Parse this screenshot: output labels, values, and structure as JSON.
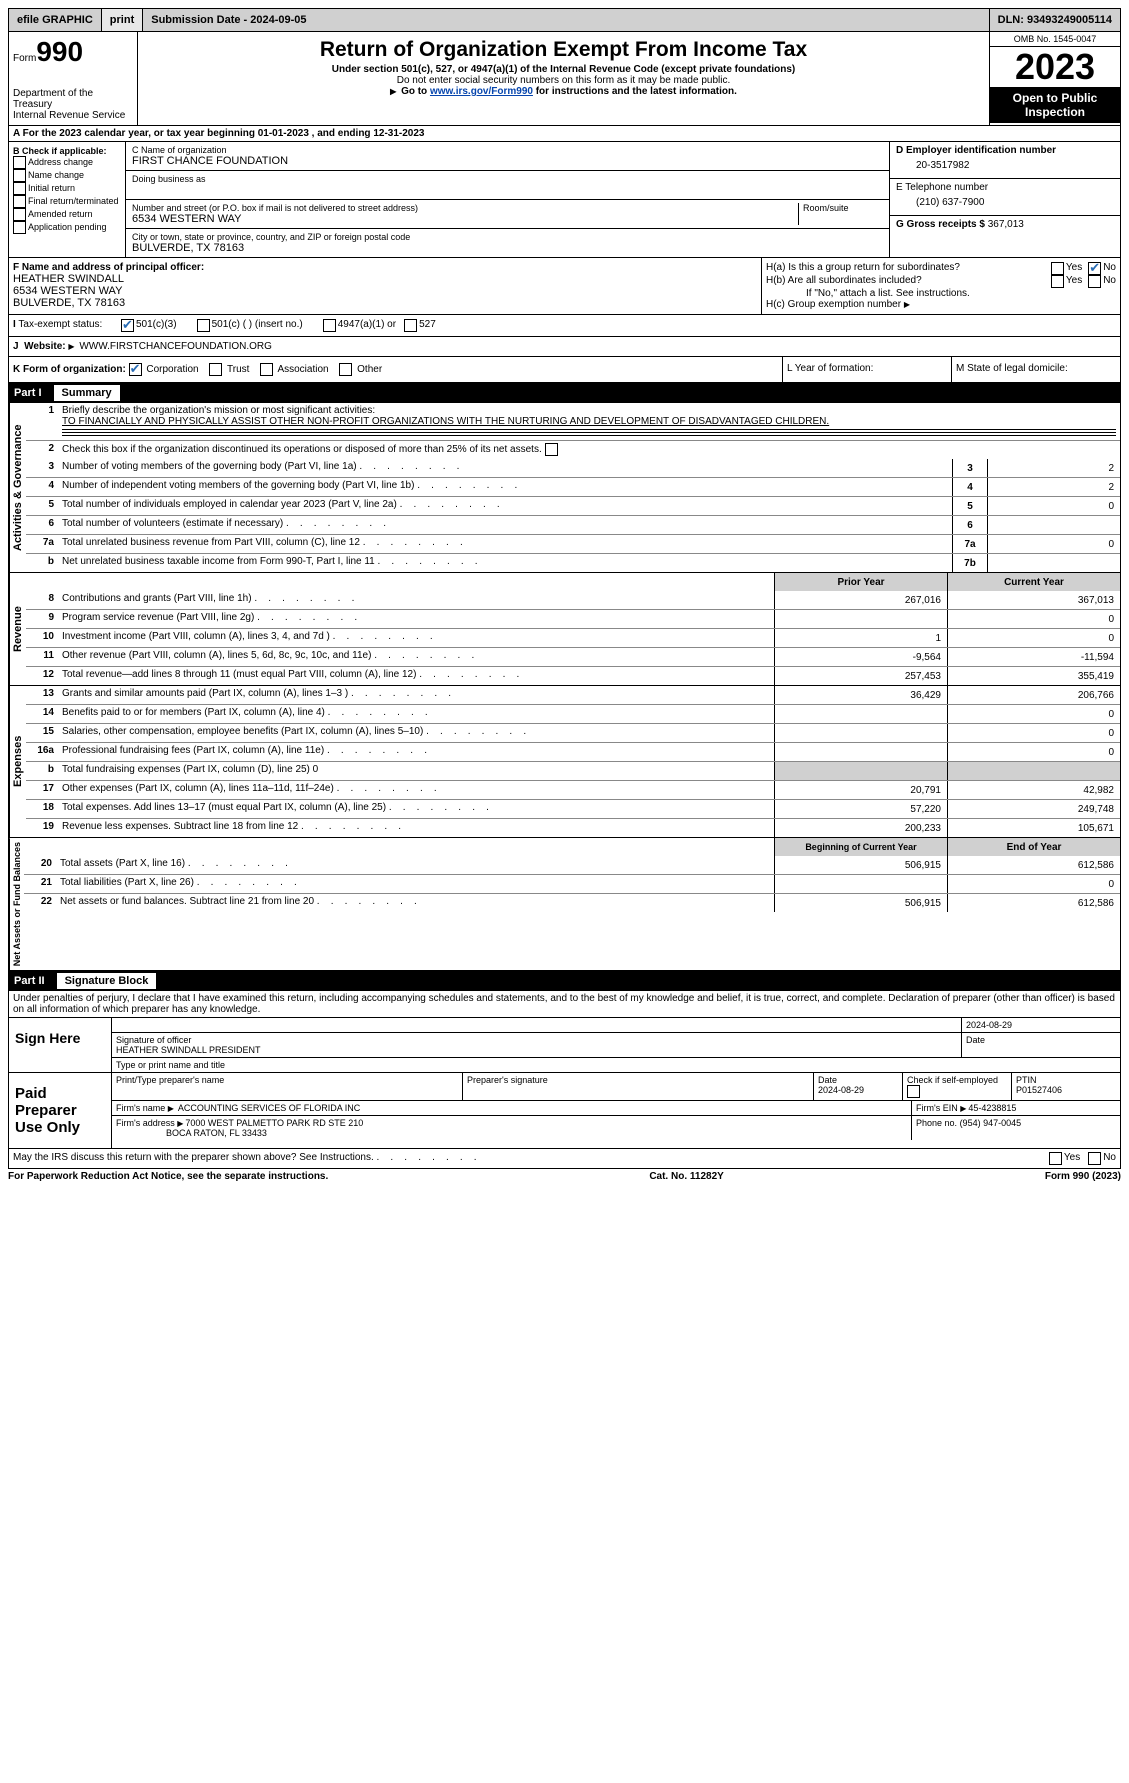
{
  "topbar": {
    "efile": "efile GRAPHIC",
    "print": "print",
    "submission": "Submission Date - 2024-09-05",
    "dln": "DLN: 93493249005114"
  },
  "header": {
    "form_label": "Form",
    "form_num": "990",
    "dept": "Department of the Treasury",
    "irs": "Internal Revenue Service",
    "title": "Return of Organization Exempt From Income Tax",
    "sub1": "Under section 501(c), 527, or 4947(a)(1) of the Internal Revenue Code (except private foundations)",
    "sub2": "Do not enter social security numbers on this form as it may be made public.",
    "sub3_pre": "Go to ",
    "sub3_link": "www.irs.gov/Form990",
    "sub3_post": " for instructions and the latest information.",
    "omb": "OMB No. 1545-0047",
    "year": "2023",
    "public": "Open to Public Inspection"
  },
  "row_a": "A For the 2023 calendar year, or tax year beginning 01-01-2023    , and ending 12-31-2023",
  "box_b": {
    "label": "B Check if applicable:",
    "items": [
      "Address change",
      "Name change",
      "Initial return",
      "Final return/terminated",
      "Amended return",
      "Application pending"
    ]
  },
  "box_c": {
    "label": "C Name of organization",
    "name": "FIRST CHANCE FOUNDATION",
    "dba_lbl": "Doing business as",
    "street_lbl": "Number and street (or P.O. box if mail is not delivered to street address)",
    "room_lbl": "Room/suite",
    "street": "6534 WESTERN WAY",
    "city_lbl": "City or town, state or province, country, and ZIP or foreign postal code",
    "city": "BULVERDE, TX  78163"
  },
  "box_d": {
    "label": "D Employer identification number",
    "val": "20-3517982"
  },
  "box_e": {
    "label": "E Telephone number",
    "val": "(210) 637-7900"
  },
  "box_g": {
    "label": "G Gross receipts $",
    "val": "367,013"
  },
  "box_f": {
    "label": "F Name and address of principal officer:",
    "l1": "HEATHER SWINDALL",
    "l2": "6534 WESTERN WAY",
    "l3": "BULVERDE, TX  78163"
  },
  "box_h": {
    "a": "H(a)  Is this a group return for subordinates?",
    "b": "H(b)  Are all subordinates included?",
    "b_note": "If \"No,\" attach a list. See instructions.",
    "c": "H(c)  Group exemption number",
    "yes": "Yes",
    "no": "No"
  },
  "box_i": {
    "label": "Tax-exempt status:",
    "o1": "501(c)(3)",
    "o2": "501(c) (  ) (insert no.)",
    "o3": "4947(a)(1) or",
    "o4": "527"
  },
  "box_j": {
    "label": "Website:",
    "val": "WWW.FIRSTCHANCEFOUNDATION.ORG"
  },
  "box_k": {
    "label": "K Form of organization:",
    "o1": "Corporation",
    "o2": "Trust",
    "o3": "Association",
    "o4": "Other"
  },
  "box_l": "L Year of formation:",
  "box_m": "M State of legal domicile:",
  "part1": {
    "title": "Part I",
    "sub": "Summary"
  },
  "sec_gov": {
    "label": "Activities & Governance",
    "l1_lbl": "Briefly describe the organization's mission or most significant activities:",
    "l1_val": "TO FINANCIALLY AND PHYSICALLY ASSIST OTHER NON-PROFIT ORGANIZATIONS WITH THE NURTURING AND DEVELOPMENT OF DISADVANTAGED CHILDREN.",
    "l2": "Check this box       if the organization discontinued its operations or disposed of more than 25% of its net assets.",
    "rows": [
      {
        "n": "3",
        "t": "Number of voting members of the governing body (Part VI, line 1a)",
        "box": "3",
        "v": "2"
      },
      {
        "n": "4",
        "t": "Number of independent voting members of the governing body (Part VI, line 1b)",
        "box": "4",
        "v": "2"
      },
      {
        "n": "5",
        "t": "Total number of individuals employed in calendar year 2023 (Part V, line 2a)",
        "box": "5",
        "v": "0"
      },
      {
        "n": "6",
        "t": "Total number of volunteers (estimate if necessary)",
        "box": "6",
        "v": ""
      },
      {
        "n": "7a",
        "t": "Total unrelated business revenue from Part VIII, column (C), line 12",
        "box": "7a",
        "v": "0"
      },
      {
        "n": "b",
        "t": "Net unrelated business taxable income from Form 990-T, Part I, line 11",
        "box": "7b",
        "v": ""
      }
    ]
  },
  "sec_rev": {
    "label": "Revenue",
    "head_prior": "Prior Year",
    "head_curr": "Current Year",
    "rows": [
      {
        "n": "8",
        "t": "Contributions and grants (Part VIII, line 1h)",
        "p": "267,016",
        "c": "367,013"
      },
      {
        "n": "9",
        "t": "Program service revenue (Part VIII, line 2g)",
        "p": "",
        "c": "0"
      },
      {
        "n": "10",
        "t": "Investment income (Part VIII, column (A), lines 3, 4, and 7d )",
        "p": "1",
        "c": "0"
      },
      {
        "n": "11",
        "t": "Other revenue (Part VIII, column (A), lines 5, 6d, 8c, 9c, 10c, and 11e)",
        "p": "-9,564",
        "c": "-11,594"
      },
      {
        "n": "12",
        "t": "Total revenue—add lines 8 through 11 (must equal Part VIII, column (A), line 12)",
        "p": "257,453",
        "c": "355,419"
      }
    ]
  },
  "sec_exp": {
    "label": "Expenses",
    "rows": [
      {
        "n": "13",
        "t": "Grants and similar amounts paid (Part IX, column (A), lines 1–3 )",
        "p": "36,429",
        "c": "206,766"
      },
      {
        "n": "14",
        "t": "Benefits paid to or for members (Part IX, column (A), line 4)",
        "p": "",
        "c": "0"
      },
      {
        "n": "15",
        "t": "Salaries, other compensation, employee benefits (Part IX, column (A), lines 5–10)",
        "p": "",
        "c": "0"
      },
      {
        "n": "16a",
        "t": "Professional fundraising fees (Part IX, column (A), line 11e)",
        "p": "",
        "c": "0"
      },
      {
        "n": "b",
        "t": "Total fundraising expenses (Part IX, column (D), line 25) 0",
        "shade": true
      },
      {
        "n": "17",
        "t": "Other expenses (Part IX, column (A), lines 11a–11d, 11f–24e)",
        "p": "20,791",
        "c": "42,982"
      },
      {
        "n": "18",
        "t": "Total expenses. Add lines 13–17 (must equal Part IX, column (A), line 25)",
        "p": "57,220",
        "c": "249,748"
      },
      {
        "n": "19",
        "t": "Revenue less expenses. Subtract line 18 from line 12",
        "p": "200,233",
        "c": "105,671"
      }
    ]
  },
  "sec_net": {
    "label": "Net Assets or Fund Balances",
    "head_beg": "Beginning of Current Year",
    "head_end": "End of Year",
    "rows": [
      {
        "n": "20",
        "t": "Total assets (Part X, line 16)",
        "p": "506,915",
        "c": "612,586"
      },
      {
        "n": "21",
        "t": "Total liabilities (Part X, line 26)",
        "p": "",
        "c": "0"
      },
      {
        "n": "22",
        "t": "Net assets or fund balances. Subtract line 21 from line 20",
        "p": "506,915",
        "c": "612,586"
      }
    ]
  },
  "part2": {
    "title": "Part II",
    "sub": "Signature Block"
  },
  "perjury": "Under penalties of perjury, I declare that I have examined this return, including accompanying schedules and statements, and to the best of my knowledge and belief, it is true, correct, and complete. Declaration of preparer (other than officer) is based on all information of which preparer has any knowledge.",
  "sign": {
    "left": "Sign Here",
    "date": "2024-08-29",
    "sig_lbl": "Signature of officer",
    "name": "HEATHER SWINDALL  PRESIDENT",
    "name_lbl": "Type or print name and title",
    "date_lbl": "Date"
  },
  "paid": {
    "left": "Paid Preparer Use Only",
    "h_name": "Print/Type preparer's name",
    "h_sig": "Preparer's signature",
    "h_date": "Date",
    "date": "2024-08-29",
    "chk": "Check       if self-employed",
    "ptin_lbl": "PTIN",
    "ptin": "P01527406",
    "firm_lbl": "Firm's name",
    "firm": "ACCOUNTING SERVICES OF FLORIDA INC",
    "ein_lbl": "Firm's EIN",
    "ein": "45-4238815",
    "addr_lbl": "Firm's address",
    "addr1": "7000 WEST PALMETTO PARK RD STE 210",
    "addr2": "BOCA RATON, FL  33433",
    "phone_lbl": "Phone no.",
    "phone": "(954) 947-0045"
  },
  "discuss": "May the IRS discuss this return with the preparer shown above? See Instructions.",
  "footer": {
    "left": "For Paperwork Reduction Act Notice, see the separate instructions.",
    "mid": "Cat. No. 11282Y",
    "right": "Form 990 (2023)"
  }
}
